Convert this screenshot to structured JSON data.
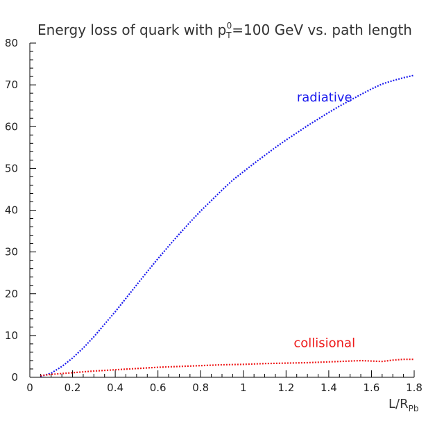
{
  "chart_data": {
    "type": "line",
    "title_prefix": "Energy loss of quark with p",
    "title_sub": "T",
    "title_sup": "0",
    "title_suffix": "=100 GeV vs. path length",
    "xlabel_main": "L/R",
    "xlabel_sub": "Pb",
    "ylabel": "",
    "xlim": [
      0,
      1.8
    ],
    "ylim": [
      0,
      80
    ],
    "x_ticks": [
      "0",
      "0.2",
      "0.4",
      "0.6",
      "0.8",
      "1",
      "1.2",
      "1.4",
      "1.6",
      "1.8"
    ],
    "y_ticks": [
      "0",
      "10",
      "20",
      "30",
      "40",
      "50",
      "60",
      "70",
      "80"
    ],
    "grid": false,
    "series": [
      {
        "name": "radiative",
        "color": "#1a1aee",
        "line_style": "dotted",
        "x": [
          0.05,
          0.1,
          0.15,
          0.2,
          0.25,
          0.3,
          0.35,
          0.4,
          0.45,
          0.5,
          0.55,
          0.6,
          0.65,
          0.7,
          0.75,
          0.8,
          0.85,
          0.9,
          0.95,
          1.0,
          1.05,
          1.1,
          1.15,
          1.2,
          1.25,
          1.3,
          1.35,
          1.4,
          1.45,
          1.5,
          1.55,
          1.6,
          1.65,
          1.7,
          1.75,
          1.8
        ],
        "y": [
          0.2,
          1.0,
          2.6,
          4.6,
          7.0,
          9.7,
          12.7,
          15.7,
          18.9,
          22.1,
          25.3,
          28.4,
          31.4,
          34.3,
          37.1,
          39.8,
          42.3,
          44.8,
          47.2,
          49.2,
          51.2,
          53.1,
          55.0,
          56.8,
          58.5,
          60.2,
          61.8,
          63.4,
          64.9,
          66.3,
          67.7,
          69.0,
          70.2,
          71.0,
          71.7,
          72.3
        ]
      },
      {
        "name": "collisional",
        "color": "#ee1a1a",
        "line_style": "dotted",
        "x": [
          0.05,
          0.1,
          0.2,
          0.3,
          0.4,
          0.5,
          0.6,
          0.7,
          0.8,
          0.9,
          1.0,
          1.1,
          1.2,
          1.3,
          1.4,
          1.5,
          1.55,
          1.6,
          1.65,
          1.7,
          1.75,
          1.8
        ],
        "y": [
          0.4,
          0.7,
          1.1,
          1.5,
          1.8,
          2.1,
          2.4,
          2.6,
          2.8,
          3.0,
          3.1,
          3.3,
          3.4,
          3.5,
          3.7,
          3.9,
          4.0,
          3.9,
          3.8,
          4.1,
          4.3,
          4.3
        ]
      }
    ],
    "annotations": [
      {
        "text": "radiative",
        "color": "#1a1aee",
        "x": 1.38,
        "y": 66
      },
      {
        "text": "collisional",
        "color": "#ee1a1a",
        "x": 1.38,
        "y": 7.2
      }
    ]
  }
}
